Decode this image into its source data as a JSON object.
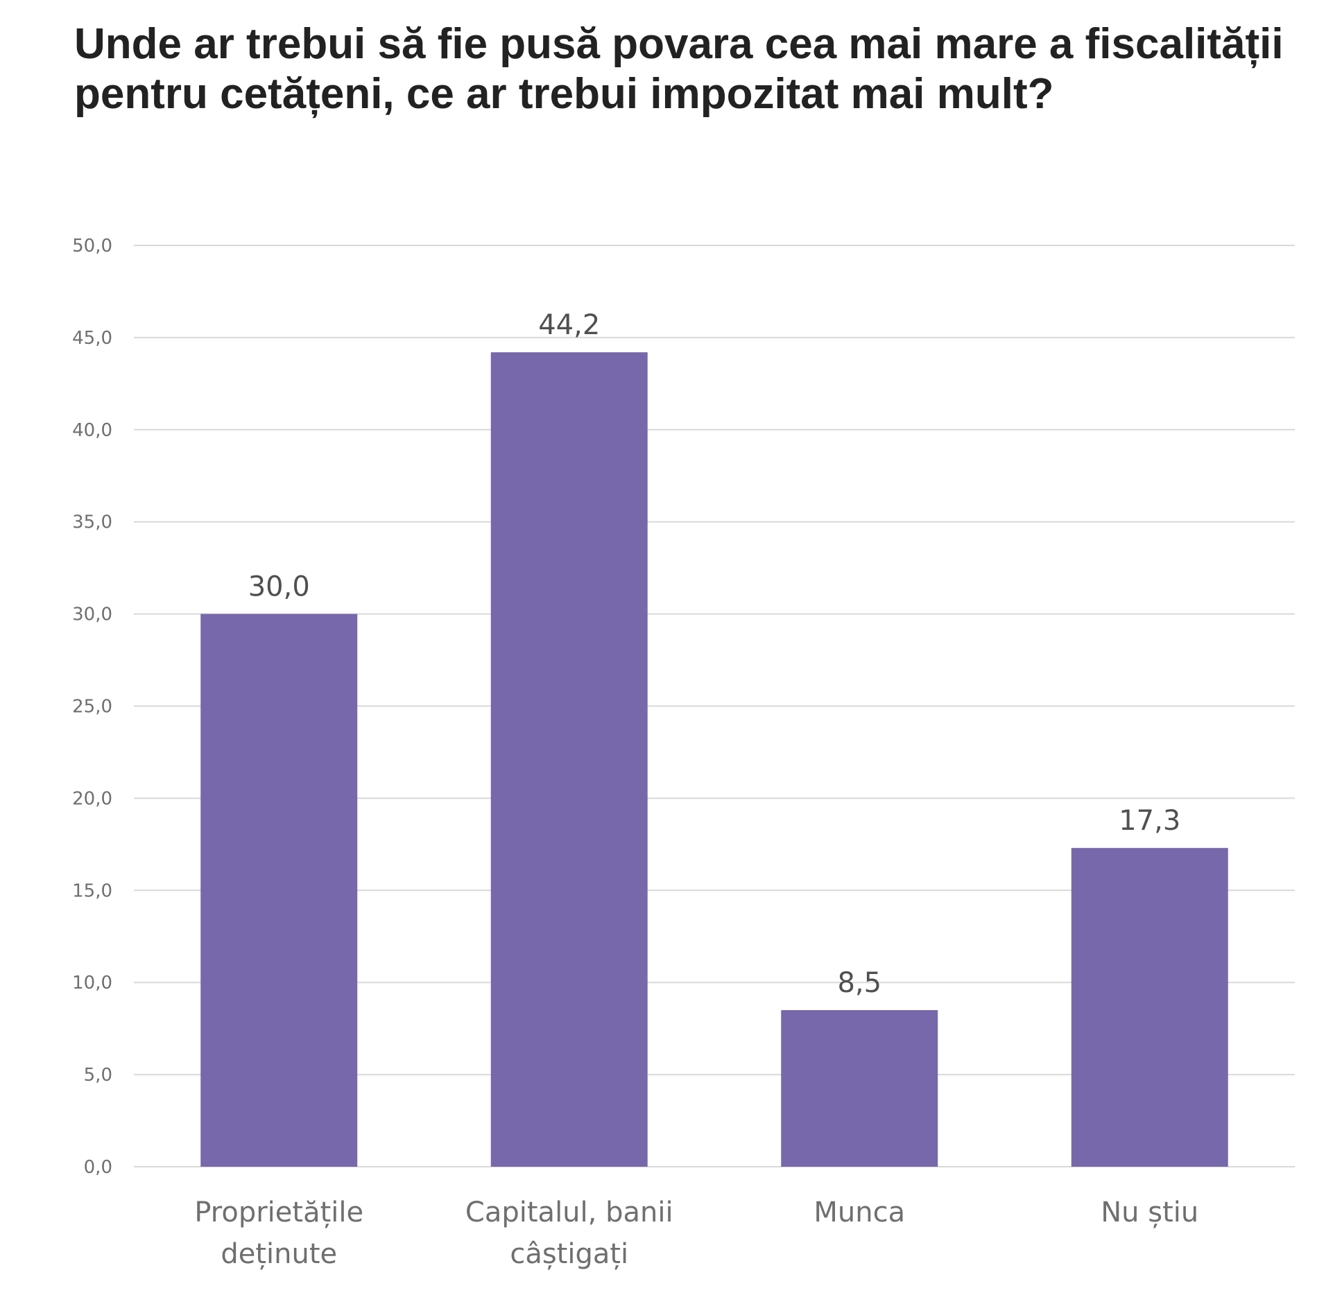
{
  "chart_data": {
    "type": "bar",
    "title": "Unde ar trebui să fie pusă povara cea mai mare a fiscalității pentru cetățeni, ce ar trebui impozitat mai mult?",
    "categories": [
      [
        "Proprietățile",
        "deținute"
      ],
      [
        "Capitalul, banii",
        "câștigați"
      ],
      [
        "Munca"
      ],
      [
        "Nu știu"
      ]
    ],
    "values": [
      30.0,
      44.2,
      8.5,
      17.3
    ],
    "data_labels": [
      "30,0",
      "44,2",
      "8,5",
      "17,3"
    ],
    "y_ticks": [
      "0,0",
      "5,0",
      "10,0",
      "15,0",
      "20,0",
      "25,0",
      "30,0",
      "35,0",
      "40,0",
      "45,0",
      "50,0"
    ],
    "ylim": [
      0,
      50
    ],
    "y_step": 5,
    "grid": true,
    "legend": "none",
    "bar_color": "#7768ab",
    "grid_color": "#d9d9d9"
  }
}
